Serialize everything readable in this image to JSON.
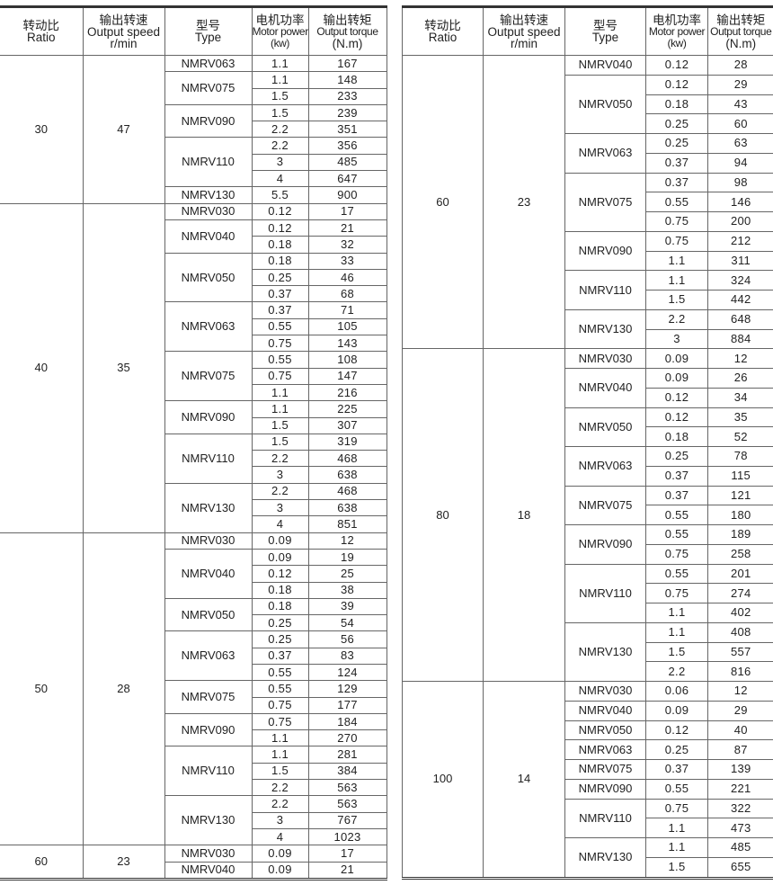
{
  "headers": {
    "ratio_cn": "转动比",
    "ratio_en": "Ratio",
    "speed_cn": "输出转速",
    "speed_en": "Output speed",
    "speed_unit": "r/min",
    "type_cn": "型号",
    "type_en": "Type",
    "power_cn": "电机功率",
    "power_en": "Motor power",
    "power_unit": "(kw)",
    "torque_cn": "输出转矩",
    "torque_en": "Output torque",
    "torque_unit": "(N.m)"
  },
  "tables": [
    {
      "groups": [
        {
          "ratio": "30",
          "speed": "47",
          "types": [
            {
              "type": "NMRV063",
              "rows": [
                [
                  "1.1",
                  "167"
                ]
              ]
            },
            {
              "type": "NMRV075",
              "rows": [
                [
                  "1.1",
                  "148"
                ],
                [
                  "1.5",
                  "233"
                ]
              ]
            },
            {
              "type": "NMRV090",
              "rows": [
                [
                  "1.5",
                  "239"
                ],
                [
                  "2.2",
                  "351"
                ]
              ]
            },
            {
              "type": "NMRV110",
              "rows": [
                [
                  "2.2",
                  "356"
                ],
                [
                  "3",
                  "485"
                ],
                [
                  "4",
                  "647"
                ]
              ]
            },
            {
              "type": "NMRV130",
              "rows": [
                [
                  "5.5",
                  "900"
                ]
              ]
            }
          ]
        },
        {
          "ratio": "40",
          "speed": "35",
          "types": [
            {
              "type": "NMRV030",
              "rows": [
                [
                  "0.12",
                  "17"
                ]
              ]
            },
            {
              "type": "NMRV040",
              "rows": [
                [
                  "0.12",
                  "21"
                ],
                [
                  "0.18",
                  "32"
                ]
              ]
            },
            {
              "type": "NMRV050",
              "rows": [
                [
                  "0.18",
                  "33"
                ],
                [
                  "0.25",
                  "46"
                ],
                [
                  "0.37",
                  "68"
                ]
              ]
            },
            {
              "type": "NMRV063",
              "rows": [
                [
                  "0.37",
                  "71"
                ],
                [
                  "0.55",
                  "105"
                ],
                [
                  "0.75",
                  "143"
                ]
              ]
            },
            {
              "type": "NMRV075",
              "rows": [
                [
                  "0.55",
                  "108"
                ],
                [
                  "0.75",
                  "147"
                ],
                [
                  "1.1",
                  "216"
                ]
              ]
            },
            {
              "type": "NMRV090",
              "rows": [
                [
                  "1.1",
                  "225"
                ],
                [
                  "1.5",
                  "307"
                ]
              ]
            },
            {
              "type": "NMRV110",
              "rows": [
                [
                  "1.5",
                  "319"
                ],
                [
                  "2.2",
                  "468"
                ],
                [
                  "3",
                  "638"
                ]
              ]
            },
            {
              "type": "NMRV130",
              "rows": [
                [
                  "2.2",
                  "468"
                ],
                [
                  "3",
                  "638"
                ],
                [
                  "4",
                  "851"
                ]
              ]
            }
          ]
        },
        {
          "ratio": "50",
          "speed": "28",
          "types": [
            {
              "type": "NMRV030",
              "rows": [
                [
                  "0.09",
                  "12"
                ]
              ]
            },
            {
              "type": "NMRV040",
              "rows": [
                [
                  "0.09",
                  "19"
                ],
                [
                  "0.12",
                  "25"
                ],
                [
                  "0.18",
                  "38"
                ]
              ]
            },
            {
              "type": "NMRV050",
              "rows": [
                [
                  "0.18",
                  "39"
                ],
                [
                  "0.25",
                  "54"
                ]
              ]
            },
            {
              "type": "NMRV063",
              "rows": [
                [
                  "0.25",
                  "56"
                ],
                [
                  "0.37",
                  "83"
                ],
                [
                  "0.55",
                  "124"
                ]
              ]
            },
            {
              "type": "NMRV075",
              "rows": [
                [
                  "0.55",
                  "129"
                ],
                [
                  "0.75",
                  "177"
                ]
              ]
            },
            {
              "type": "NMRV090",
              "rows": [
                [
                  "0.75",
                  "184"
                ],
                [
                  "1.1",
                  "270"
                ]
              ]
            },
            {
              "type": "NMRV110",
              "rows": [
                [
                  "1.1",
                  "281"
                ],
                [
                  "1.5",
                  "384"
                ],
                [
                  "2.2",
                  "563"
                ]
              ]
            },
            {
              "type": "NMRV130",
              "rows": [
                [
                  "2.2",
                  "563"
                ],
                [
                  "3",
                  "767"
                ],
                [
                  "4",
                  "1023"
                ]
              ]
            }
          ]
        },
        {
          "ratio": "60",
          "speed": "23",
          "types": [
            {
              "type": "NMRV030",
              "rows": [
                [
                  "0.09",
                  "17"
                ]
              ]
            },
            {
              "type": "NMRV040",
              "rows": [
                [
                  "0.09",
                  "21"
                ]
              ]
            }
          ]
        }
      ]
    },
    {
      "groups": [
        {
          "ratio": "60",
          "speed": "23",
          "types": [
            {
              "type": "NMRV040",
              "rows": [
                [
                  "0.12",
                  "28"
                ]
              ]
            },
            {
              "type": "NMRV050",
              "rows": [
                [
                  "0.12",
                  "29"
                ],
                [
                  "0.18",
                  "43"
                ],
                [
                  "0.25",
                  "60"
                ]
              ]
            },
            {
              "type": "NMRV063",
              "rows": [
                [
                  "0.25",
                  "63"
                ],
                [
                  "0.37",
                  "94"
                ]
              ]
            },
            {
              "type": "NMRV075",
              "rows": [
                [
                  "0.37",
                  "98"
                ],
                [
                  "0.55",
                  "146"
                ],
                [
                  "0.75",
                  "200"
                ]
              ]
            },
            {
              "type": "NMRV090",
              "rows": [
                [
                  "0.75",
                  "212"
                ],
                [
                  "1.1",
                  "311"
                ]
              ]
            },
            {
              "type": "NMRV110",
              "rows": [
                [
                  "1.1",
                  "324"
                ],
                [
                  "1.5",
                  "442"
                ]
              ]
            },
            {
              "type": "NMRV130",
              "rows": [
                [
                  "2.2",
                  "648"
                ],
                [
                  "3",
                  "884"
                ]
              ]
            }
          ]
        },
        {
          "ratio": "80",
          "speed": "18",
          "types": [
            {
              "type": "NMRV030",
              "rows": [
                [
                  "0.09",
                  "12"
                ]
              ]
            },
            {
              "type": "NMRV040",
              "rows": [
                [
                  "0.09",
                  "26"
                ],
                [
                  "0.12",
                  "34"
                ]
              ]
            },
            {
              "type": "NMRV050",
              "rows": [
                [
                  "0.12",
                  "35"
                ],
                [
                  "0.18",
                  "52"
                ]
              ]
            },
            {
              "type": "NMRV063",
              "rows": [
                [
                  "0.25",
                  "78"
                ],
                [
                  "0.37",
                  "115"
                ]
              ]
            },
            {
              "type": "NMRV075",
              "rows": [
                [
                  "0.37",
                  "121"
                ],
                [
                  "0.55",
                  "180"
                ]
              ]
            },
            {
              "type": "NMRV090",
              "rows": [
                [
                  "0.55",
                  "189"
                ],
                [
                  "0.75",
                  "258"
                ]
              ]
            },
            {
              "type": "NMRV110",
              "rows": [
                [
                  "0.55",
                  "201"
                ],
                [
                  "0.75",
                  "274"
                ],
                [
                  "1.1",
                  "402"
                ]
              ]
            },
            {
              "type": "NMRV130",
              "rows": [
                [
                  "1.1",
                  "408"
                ],
                [
                  "1.5",
                  "557"
                ],
                [
                  "2.2",
                  "816"
                ]
              ]
            }
          ]
        },
        {
          "ratio": "100",
          "speed": "14",
          "types": [
            {
              "type": "NMRV030",
              "rows": [
                [
                  "0.06",
                  "12"
                ]
              ]
            },
            {
              "type": "NMRV040",
              "rows": [
                [
                  "0.09",
                  "29"
                ]
              ]
            },
            {
              "type": "NMRV050",
              "rows": [
                [
                  "0.12",
                  "40"
                ]
              ]
            },
            {
              "type": "NMRV063",
              "rows": [
                [
                  "0.25",
                  "87"
                ]
              ]
            },
            {
              "type": "NMRV075",
              "rows": [
                [
                  "0.37",
                  "139"
                ]
              ]
            },
            {
              "type": "NMRV090",
              "rows": [
                [
                  "0.55",
                  "221"
                ]
              ]
            },
            {
              "type": "NMRV110",
              "rows": [
                [
                  "0.75",
                  "322"
                ],
                [
                  "1.1",
                  "473"
                ]
              ]
            },
            {
              "type": "NMRV130",
              "rows": [
                [
                  "1.1",
                  "485"
                ],
                [
                  "1.5",
                  "655"
                ]
              ]
            }
          ]
        }
      ]
    }
  ]
}
